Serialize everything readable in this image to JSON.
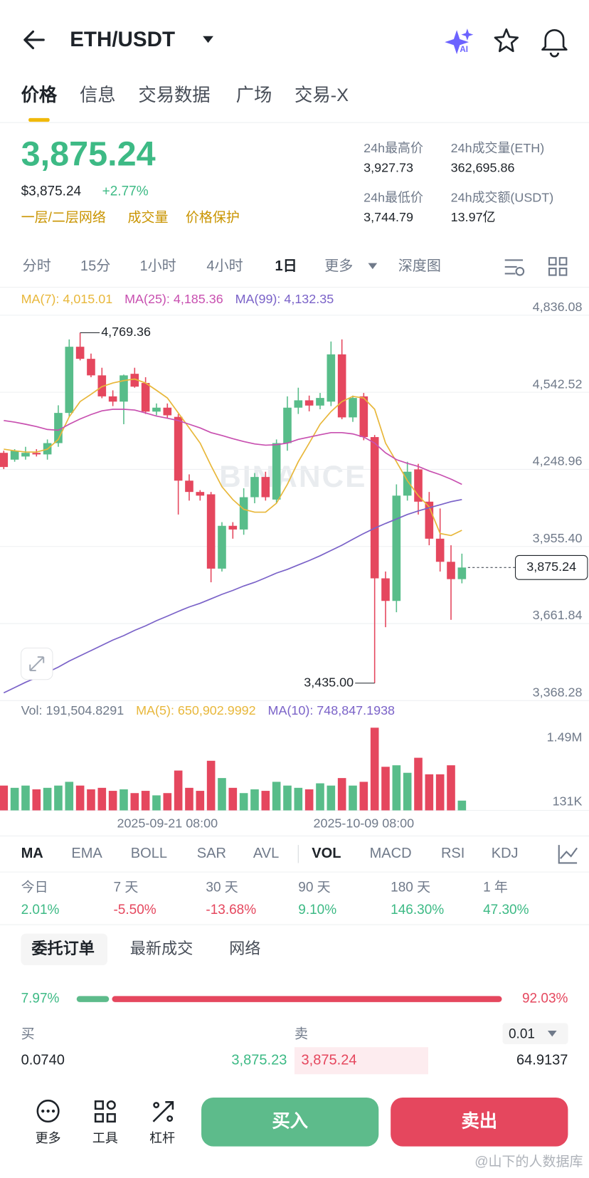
{
  "header": {
    "title": "ETH/USDT",
    "ai_badge": "AI"
  },
  "tabs": [
    "价格",
    "信息",
    "交易数据",
    "广场",
    "交易-X"
  ],
  "price": {
    "last": "3,875.24",
    "usd": "$3,875.24",
    "change": "+2.77%",
    "links": [
      "一层/二层网络",
      "成交量",
      "价格保护"
    ]
  },
  "stats": [
    {
      "label": "24h最高价",
      "value": "3,927.73"
    },
    {
      "label": "24h成交量(ETH)",
      "value": "362,695.86"
    },
    {
      "label": "24h最低价",
      "value": "3,744.79"
    },
    {
      "label": "24h成交额(USDT)",
      "value": "13.97亿"
    }
  ],
  "intervals": [
    "分时",
    "15分",
    "1小时",
    "4小时",
    "1日",
    "更多",
    "深度图"
  ],
  "chart": {
    "type": "candlestick",
    "watermark": "BINANCE",
    "up_color": "#58bd8a",
    "down_color": "#e5475e",
    "categories": [
      null,
      null,
      null,
      null,
      null,
      null,
      null,
      null,
      null,
      null,
      null,
      null,
      null,
      null,
      null,
      "2025-09-21 08:00",
      null,
      null,
      null,
      null,
      null,
      null,
      null,
      null,
      null,
      null,
      null,
      null,
      null,
      null,
      null,
      null,
      null,
      "2025-10-09 08:00",
      null,
      null,
      null,
      null,
      null,
      null,
      null,
      null,
      null
    ],
    "open": [
      4312,
      4286,
      4298,
      4312,
      4306,
      4349,
      4464,
      4716,
      4670,
      4607,
      4527,
      4507,
      4613,
      4578,
      4469,
      4484,
      4449,
      4206,
      4163,
      4154,
      3871,
      4034,
      4020,
      4143,
      4220,
      4134,
      4349,
      4484,
      4512,
      4492,
      4507,
      4687,
      4447,
      4527,
      4372,
      3834,
      3748,
      4149,
      4249,
      4126,
      3985,
      3897,
      3831
    ],
    "high": [
      4320,
      4326,
      4335,
      4326,
      4363,
      4493,
      4744,
      4769.36,
      4690,
      4636,
      4550,
      4610,
      4636,
      4600,
      4500,
      4500,
      4460,
      4230,
      4170,
      4163,
      4048,
      4048,
      4177,
      4235,
      4240,
      4363,
      4527,
      4560,
      4530,
      4540,
      4736,
      4744,
      4530,
      4540,
      4380,
      3860,
      4192,
      4278,
      4270,
      4163,
      4100,
      3960,
      3928
    ],
    "low": [
      4250,
      4278,
      4286,
      4298,
      4286,
      4335,
      4449,
      4664,
      4600,
      4520,
      4490,
      4421,
      4560,
      4460,
      4455,
      4445,
      4077,
      4130,
      4130,
      3819,
      3860,
      3985,
      4000,
      4120,
      4130,
      4120,
      4320,
      4460,
      4470,
      4478,
      4490,
      4440,
      4430,
      4360,
      3435.0,
      3648,
      3705,
      4130,
      4077,
      3960,
      3860,
      3676,
      3815
    ],
    "close": [
      4258,
      4320,
      4312,
      4306,
      4349,
      4464,
      4716,
      4670,
      4607,
      4527,
      4507,
      4607,
      4564,
      4469,
      4484,
      4455,
      4206,
      4163,
      4149,
      3871,
      4034,
      4020,
      4143,
      4220,
      4143,
      4349,
      4484,
      4512,
      4492,
      4521,
      4687,
      4447,
      4521,
      4372,
      3834,
      3748,
      4149,
      4240,
      4126,
      3985,
      3897,
      3831,
      3875.24
    ],
    "volume": [
      528000,
      480000,
      528000,
      448000,
      480000,
      528000,
      608000,
      528000,
      448000,
      480000,
      416000,
      448000,
      368000,
      416000,
      320000,
      368000,
      848000,
      480000,
      416000,
      1056000,
      688000,
      480000,
      368000,
      448000,
      416000,
      608000,
      528000,
      480000,
      448000,
      576000,
      528000,
      688000,
      528000,
      608000,
      1760000,
      928000,
      960000,
      800000,
      1120000,
      768000,
      768000,
      960000,
      208000
    ],
    "series": [
      {
        "name": "MA(7): 4,015.01",
        "color": "#e8b73a",
        "values": [
          4326,
          4320,
          4315,
          4315,
          4326,
          4363,
          4449,
          4507,
          4535,
          4564,
          4578,
          4587,
          4593,
          4578,
          4550,
          4521,
          4464,
          4407,
          4349,
          4263,
          4183,
          4134,
          4097,
          4086,
          4086,
          4120,
          4192,
          4278,
          4349,
          4421,
          4469,
          4507,
          4527,
          4521,
          4478,
          4349,
          4278,
          4206,
          4149,
          4106,
          4005,
          3997,
          4017
        ]
      },
      {
        "name": "MA(25): 4,185.36",
        "color": "#c850b0",
        "values": [
          4435,
          4429,
          4421,
          4412,
          4401,
          4398,
          4421,
          4441,
          4458,
          4472,
          4478,
          4478,
          4475,
          4464,
          4452,
          4444,
          4435,
          4421,
          4407,
          4389,
          4378,
          4366,
          4355,
          4346,
          4341,
          4343,
          4349,
          4363,
          4372,
          4381,
          4389,
          4389,
          4384,
          4372,
          4349,
          4312,
          4286,
          4272,
          4260,
          4243,
          4229,
          4212,
          4192
        ]
      },
      {
        "name": "MA(99): 4,132.35",
        "color": "#7a62c8",
        "values": [
          3398,
          3418,
          3438,
          3456,
          3476,
          3496,
          3519,
          3539,
          3559,
          3579,
          3599,
          3616,
          3636,
          3653,
          3673,
          3690,
          3708,
          3725,
          3739,
          3756,
          3773,
          3788,
          3805,
          3819,
          3836,
          3854,
          3868,
          3885,
          3902,
          3920,
          3940,
          3960,
          3983,
          4005,
          4025,
          4043,
          4060,
          4077,
          4091,
          4103,
          4114,
          4126,
          4134
        ]
      }
    ],
    "ylim": [
      3368.28,
      4940
    ],
    "yticks": [
      {
        "value": 4836.08,
        "label": "4,836.08"
      },
      {
        "value": 4542.52,
        "label": "4,542.52"
      },
      {
        "value": 4248.96,
        "label": "4,248.96"
      },
      {
        "value": 3955.4,
        "label": "3,955.40"
      },
      {
        "value": 3661.84,
        "label": "3,661.84"
      },
      {
        "value": 3368.28,
        "label": "3,368.28"
      }
    ],
    "annotations": {
      "high": {
        "value": 4769.36,
        "label": "4,769.36"
      },
      "low": {
        "value": 3435.0,
        "label": "3,435.00"
      },
      "last": {
        "value": 3875.24,
        "label": "3,875.24"
      }
    },
    "volume_legend": [
      {
        "text": "Vol: 191,504.8291",
        "color": "#707a8a"
      },
      {
        "text": "MA(5): 650,902.9992",
        "color": "#e8b73a"
      },
      {
        "text": "MA(10): 748,847.1938",
        "color": "#7a62c8"
      }
    ],
    "vlim": [
      0,
      1888000
    ],
    "vticks": [
      {
        "value": 1490000,
        "label": "1.49M"
      },
      {
        "value": 131000,
        "label": "131K"
      }
    ]
  },
  "indicators": [
    "MA",
    "EMA",
    "BOLL",
    "SAR",
    "AVL",
    "VOL",
    "MACD",
    "RSI",
    "KDJ"
  ],
  "performance": [
    {
      "label": "今日",
      "value": "2.01%"
    },
    {
      "label": "7 天",
      "value": "-5.50%"
    },
    {
      "label": "30 天",
      "value": "-13.68%"
    },
    {
      "label": "90 天",
      "value": "9.10%"
    },
    {
      "label": "180 天",
      "value": "146.30%"
    },
    {
      "label": "1 年",
      "value": "47.30%"
    }
  ],
  "order_tabs": [
    "委托订单",
    "最新成交",
    "网络"
  ],
  "order_book": {
    "ratio": {
      "buy": {
        "value": 7.97,
        "label": "7.97%"
      },
      "sell": {
        "value": 92.03,
        "label": "92.03%"
      }
    },
    "bid_header": "买",
    "ask_header": "卖",
    "precision": "0.01",
    "rows": [
      {
        "bid_qty": "0.0740",
        "bid": "3,875.23",
        "ask": "3,875.24",
        "ask_qty": "64.9137"
      }
    ]
  },
  "bottom_bar": {
    "tools": [
      "更多",
      "工具",
      "杠杆"
    ],
    "buy": "买入",
    "sell": "卖出"
  },
  "footer_watermark": "@山下的人数据库"
}
